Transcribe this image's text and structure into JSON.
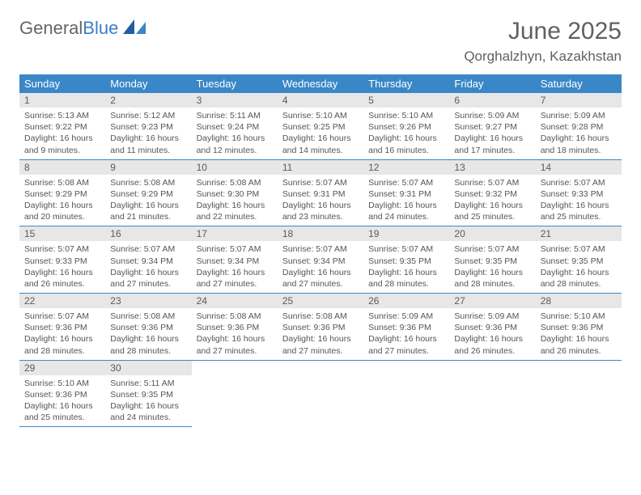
{
  "logo": {
    "part1": "General",
    "part2": "Blue"
  },
  "title": "June 2025",
  "location": "Qorghalzhyn, Kazakhstan",
  "colors": {
    "header_bg": "#3a87c8",
    "header_text": "#ffffff",
    "daynum_bg": "#e7e7e7",
    "text": "#555555",
    "rule": "#3a87c8",
    "logo_gray": "#666666",
    "logo_blue": "#3a7fc4"
  },
  "weekdays": [
    "Sunday",
    "Monday",
    "Tuesday",
    "Wednesday",
    "Thursday",
    "Friday",
    "Saturday"
  ],
  "weeks": [
    [
      {
        "n": "1",
        "sr": "Sunrise: 5:13 AM",
        "ss": "Sunset: 9:22 PM",
        "dl": "Daylight: 16 hours and 9 minutes."
      },
      {
        "n": "2",
        "sr": "Sunrise: 5:12 AM",
        "ss": "Sunset: 9:23 PM",
        "dl": "Daylight: 16 hours and 11 minutes."
      },
      {
        "n": "3",
        "sr": "Sunrise: 5:11 AM",
        "ss": "Sunset: 9:24 PM",
        "dl": "Daylight: 16 hours and 12 minutes."
      },
      {
        "n": "4",
        "sr": "Sunrise: 5:10 AM",
        "ss": "Sunset: 9:25 PM",
        "dl": "Daylight: 16 hours and 14 minutes."
      },
      {
        "n": "5",
        "sr": "Sunrise: 5:10 AM",
        "ss": "Sunset: 9:26 PM",
        "dl": "Daylight: 16 hours and 16 minutes."
      },
      {
        "n": "6",
        "sr": "Sunrise: 5:09 AM",
        "ss": "Sunset: 9:27 PM",
        "dl": "Daylight: 16 hours and 17 minutes."
      },
      {
        "n": "7",
        "sr": "Sunrise: 5:09 AM",
        "ss": "Sunset: 9:28 PM",
        "dl": "Daylight: 16 hours and 18 minutes."
      }
    ],
    [
      {
        "n": "8",
        "sr": "Sunrise: 5:08 AM",
        "ss": "Sunset: 9:29 PM",
        "dl": "Daylight: 16 hours and 20 minutes."
      },
      {
        "n": "9",
        "sr": "Sunrise: 5:08 AM",
        "ss": "Sunset: 9:29 PM",
        "dl": "Daylight: 16 hours and 21 minutes."
      },
      {
        "n": "10",
        "sr": "Sunrise: 5:08 AM",
        "ss": "Sunset: 9:30 PM",
        "dl": "Daylight: 16 hours and 22 minutes."
      },
      {
        "n": "11",
        "sr": "Sunrise: 5:07 AM",
        "ss": "Sunset: 9:31 PM",
        "dl": "Daylight: 16 hours and 23 minutes."
      },
      {
        "n": "12",
        "sr": "Sunrise: 5:07 AM",
        "ss": "Sunset: 9:31 PM",
        "dl": "Daylight: 16 hours and 24 minutes."
      },
      {
        "n": "13",
        "sr": "Sunrise: 5:07 AM",
        "ss": "Sunset: 9:32 PM",
        "dl": "Daylight: 16 hours and 25 minutes."
      },
      {
        "n": "14",
        "sr": "Sunrise: 5:07 AM",
        "ss": "Sunset: 9:33 PM",
        "dl": "Daylight: 16 hours and 25 minutes."
      }
    ],
    [
      {
        "n": "15",
        "sr": "Sunrise: 5:07 AM",
        "ss": "Sunset: 9:33 PM",
        "dl": "Daylight: 16 hours and 26 minutes."
      },
      {
        "n": "16",
        "sr": "Sunrise: 5:07 AM",
        "ss": "Sunset: 9:34 PM",
        "dl": "Daylight: 16 hours and 27 minutes."
      },
      {
        "n": "17",
        "sr": "Sunrise: 5:07 AM",
        "ss": "Sunset: 9:34 PM",
        "dl": "Daylight: 16 hours and 27 minutes."
      },
      {
        "n": "18",
        "sr": "Sunrise: 5:07 AM",
        "ss": "Sunset: 9:34 PM",
        "dl": "Daylight: 16 hours and 27 minutes."
      },
      {
        "n": "19",
        "sr": "Sunrise: 5:07 AM",
        "ss": "Sunset: 9:35 PM",
        "dl": "Daylight: 16 hours and 28 minutes."
      },
      {
        "n": "20",
        "sr": "Sunrise: 5:07 AM",
        "ss": "Sunset: 9:35 PM",
        "dl": "Daylight: 16 hours and 28 minutes."
      },
      {
        "n": "21",
        "sr": "Sunrise: 5:07 AM",
        "ss": "Sunset: 9:35 PM",
        "dl": "Daylight: 16 hours and 28 minutes."
      }
    ],
    [
      {
        "n": "22",
        "sr": "Sunrise: 5:07 AM",
        "ss": "Sunset: 9:36 PM",
        "dl": "Daylight: 16 hours and 28 minutes."
      },
      {
        "n": "23",
        "sr": "Sunrise: 5:08 AM",
        "ss": "Sunset: 9:36 PM",
        "dl": "Daylight: 16 hours and 28 minutes."
      },
      {
        "n": "24",
        "sr": "Sunrise: 5:08 AM",
        "ss": "Sunset: 9:36 PM",
        "dl": "Daylight: 16 hours and 27 minutes."
      },
      {
        "n": "25",
        "sr": "Sunrise: 5:08 AM",
        "ss": "Sunset: 9:36 PM",
        "dl": "Daylight: 16 hours and 27 minutes."
      },
      {
        "n": "26",
        "sr": "Sunrise: 5:09 AM",
        "ss": "Sunset: 9:36 PM",
        "dl": "Daylight: 16 hours and 27 minutes."
      },
      {
        "n": "27",
        "sr": "Sunrise: 5:09 AM",
        "ss": "Sunset: 9:36 PM",
        "dl": "Daylight: 16 hours and 26 minutes."
      },
      {
        "n": "28",
        "sr": "Sunrise: 5:10 AM",
        "ss": "Sunset: 9:36 PM",
        "dl": "Daylight: 16 hours and 26 minutes."
      }
    ],
    [
      {
        "n": "29",
        "sr": "Sunrise: 5:10 AM",
        "ss": "Sunset: 9:36 PM",
        "dl": "Daylight: 16 hours and 25 minutes."
      },
      {
        "n": "30",
        "sr": "Sunrise: 5:11 AM",
        "ss": "Sunset: 9:35 PM",
        "dl": "Daylight: 16 hours and 24 minutes."
      },
      null,
      null,
      null,
      null,
      null
    ]
  ]
}
